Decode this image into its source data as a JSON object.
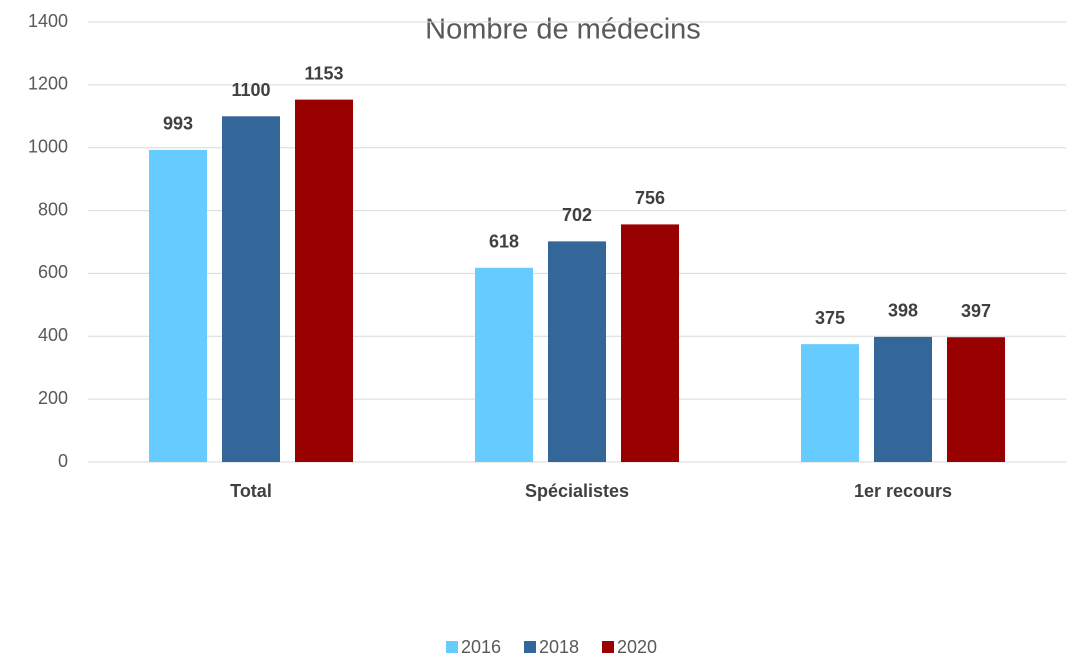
{
  "chart_data": {
    "type": "bar",
    "title": "Nombre de médecins",
    "categories": [
      "Total",
      "Spécialistes",
      "1er recours"
    ],
    "series": [
      {
        "name": "2016",
        "color": "#66ccff",
        "values": [
          993,
          618,
          375
        ]
      },
      {
        "name": "2018",
        "color": "#336699",
        "values": [
          1100,
          702,
          398
        ]
      },
      {
        "name": "2020",
        "color": "#990000",
        "values": [
          1153,
          756,
          397
        ]
      }
    ],
    "ylim": [
      0,
      1400
    ],
    "yticks": [
      0,
      200,
      400,
      600,
      800,
      1000,
      1200,
      1400
    ],
    "grid": true,
    "legend": "bottom"
  }
}
